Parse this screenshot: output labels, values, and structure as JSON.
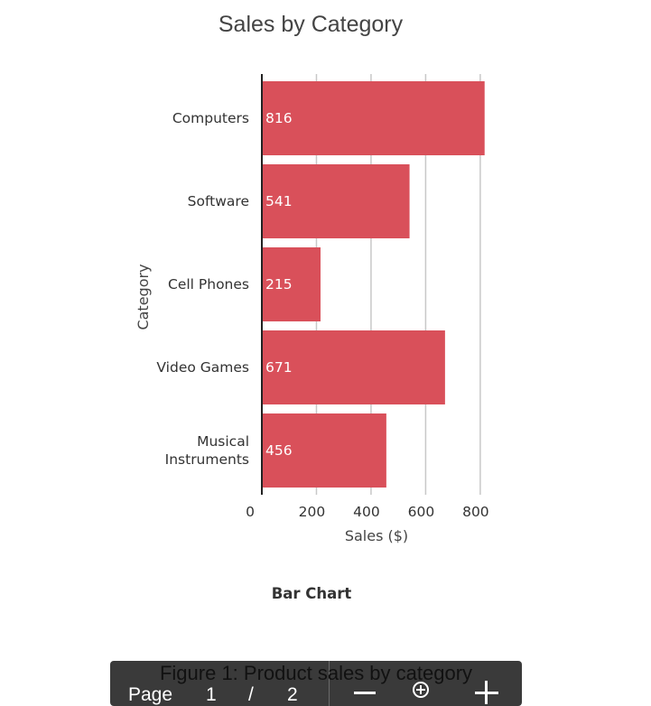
{
  "chart_data": {
    "type": "bar",
    "orientation": "horizontal",
    "title": "Sales by Category",
    "xlabel": "Sales ($)",
    "ylabel": "Category",
    "categories": [
      "Computers",
      "Software",
      "Cell Phones",
      "Video Games",
      "Musical Instruments"
    ],
    "category_labels": [
      [
        "Computers"
      ],
      [
        "Software"
      ],
      [
        "Cell Phones"
      ],
      [
        "Video Games"
      ],
      [
        "Musical",
        "Instruments"
      ]
    ],
    "values": [
      816,
      541,
      215,
      671,
      456
    ],
    "xlim": [
      0,
      850
    ],
    "xticks": [
      0,
      200,
      400,
      600,
      800
    ],
    "grid": true,
    "legend": "none",
    "bar_color": "#d9505a",
    "caption": "Bar Chart"
  },
  "figure_caption": "Figure 1: Product sales by category",
  "viewer": {
    "page_label": "Page",
    "current_page": "1",
    "separator": "/",
    "total_pages": "2",
    "zoom_out_icon": "minus-icon",
    "zoom_reset_icon": "zoom-reset-icon",
    "zoom_in_icon": "plus-icon"
  }
}
